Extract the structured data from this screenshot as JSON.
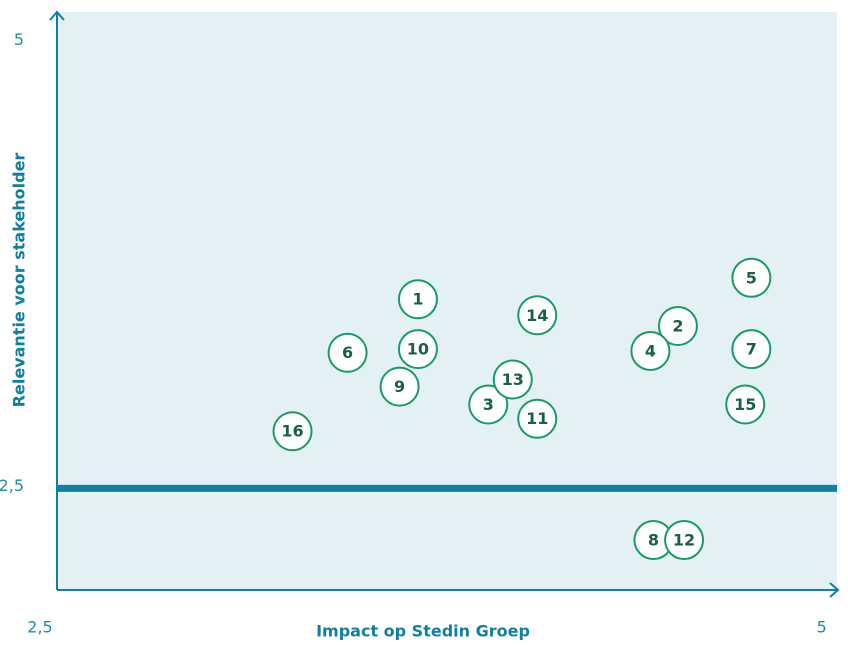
{
  "chart_data": {
    "type": "scatter",
    "xlabel": "Impact op Stedin Groep",
    "ylabel": "Relevantie voor stakeholder",
    "xlim": [
      2.5,
      5.05
    ],
    "ylim": [
      1.93,
      5.17
    ],
    "xticks": [
      {
        "value": 2.5,
        "label": "2,5"
      },
      5
    ],
    "yticks": [
      {
        "value": 2.5,
        "label": "2,5"
      },
      5
    ],
    "hline": 2.5,
    "color": "#1a9a6c",
    "labels": [
      "1",
      "2",
      "3",
      "4",
      "5",
      "6",
      "7",
      "8",
      "9",
      "10",
      "11",
      "12",
      "13",
      "14",
      "15",
      "16"
    ],
    "x": [
      3.68,
      4.53,
      3.91,
      4.44,
      4.77,
      3.45,
      4.77,
      4.45,
      3.62,
      3.68,
      4.07,
      4.55,
      3.99,
      4.07,
      4.75,
      3.27
    ],
    "y": [
      3.56,
      3.41,
      2.97,
      3.27,
      3.68,
      3.26,
      3.28,
      2.21,
      3.07,
      3.28,
      2.89,
      2.21,
      3.11,
      3.47,
      2.97,
      2.82
    ]
  }
}
